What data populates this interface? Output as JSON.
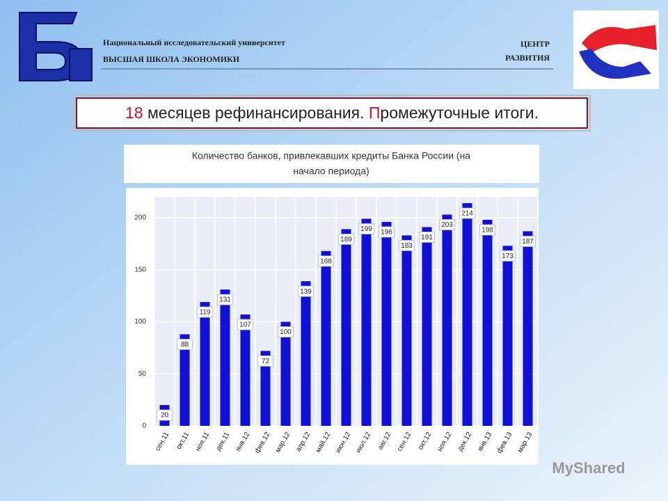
{
  "header": {
    "university_line1": "Национальный исследовательский университет",
    "university_line2": "ВЫСШАЯ ШКОЛА ЭКОНОМИКИ",
    "center_line1": "ЦЕНТР",
    "center_line2": "РАЗВИТИЯ"
  },
  "slide_title": {
    "parts": [
      "18",
      " месяцев рефинансирования. ",
      "П",
      "ромежуточные итоги."
    ]
  },
  "chart_data": {
    "type": "bar",
    "title_lines": [
      "Количество банков, привлекавших кредиты Банка России (на",
      "начало периода)"
    ],
    "categories": [
      "сен.11",
      "окт.11",
      "ноя.11",
      "дек.11",
      "янв.12",
      "фев.12",
      "мар.12",
      "апр.12",
      "май.12",
      "июн.12",
      "июл.12",
      "авг.12",
      "сен.12",
      "окт.12",
      "ноя.12",
      "дек.12",
      "янв.13",
      "фев.13",
      "мар.13"
    ],
    "values": [
      20,
      88,
      119,
      131,
      107,
      72,
      100,
      139,
      168,
      189,
      199,
      196,
      183,
      191,
      203,
      214,
      198,
      173,
      187
    ],
    "color": "#1010d8",
    "ylim": [
      0,
      220
    ],
    "yticks": [
      0,
      50,
      100,
      150,
      200
    ],
    "grid": true
  },
  "watermark": "MyShared"
}
